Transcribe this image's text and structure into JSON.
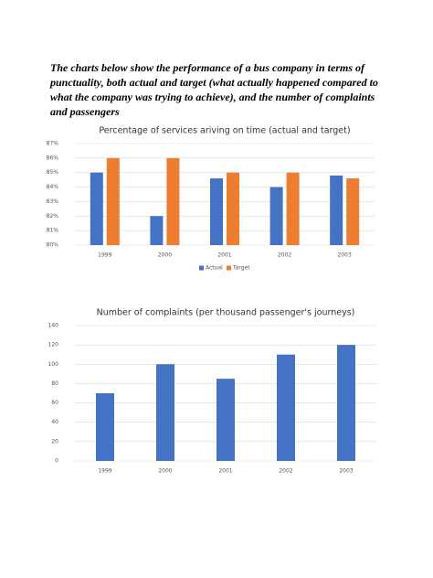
{
  "intro": "The charts below show the performance of a bus company in terms of punctuality, both actual and target (what actually happened compared to what the company was trying to achieve), and the number of complaints and passengers",
  "chart_data": [
    {
      "type": "bar",
      "title": "Percentage of services ariving on time (actual and target)",
      "categories": [
        "1999",
        "2000",
        "2001",
        "2002",
        "2003"
      ],
      "series": [
        {
          "name": "Actual",
          "color": "#4472c4",
          "values": [
            85,
            82,
            84.6,
            84,
            84.8
          ]
        },
        {
          "name": "Target",
          "color": "#ed7d31",
          "values": [
            86,
            86,
            85,
            85,
            84.6
          ]
        }
      ],
      "ylim": [
        80,
        87
      ],
      "yticks": [
        {
          "value": 80,
          "label": "80%"
        },
        {
          "value": 81,
          "label": "81%"
        },
        {
          "value": 82,
          "label": "82%"
        },
        {
          "value": 83,
          "label": "83%"
        },
        {
          "value": 84,
          "label": "84%"
        },
        {
          "value": 85,
          "label": "85%"
        },
        {
          "value": 86,
          "label": "86%"
        },
        {
          "value": 87,
          "label": "87%"
        }
      ],
      "grid": true,
      "legend": "bottom"
    },
    {
      "type": "bar",
      "title": "Number of complaints (per thousand passenger's journeys)",
      "categories": [
        "1999",
        "2000",
        "2001",
        "2002",
        "2003"
      ],
      "values": [
        70,
        100,
        85,
        110,
        120
      ],
      "color": "#4472c4",
      "ylim": [
        0,
        140
      ],
      "yticks": [
        0,
        20,
        40,
        60,
        80,
        100,
        120,
        140
      ],
      "grid": true
    }
  ]
}
